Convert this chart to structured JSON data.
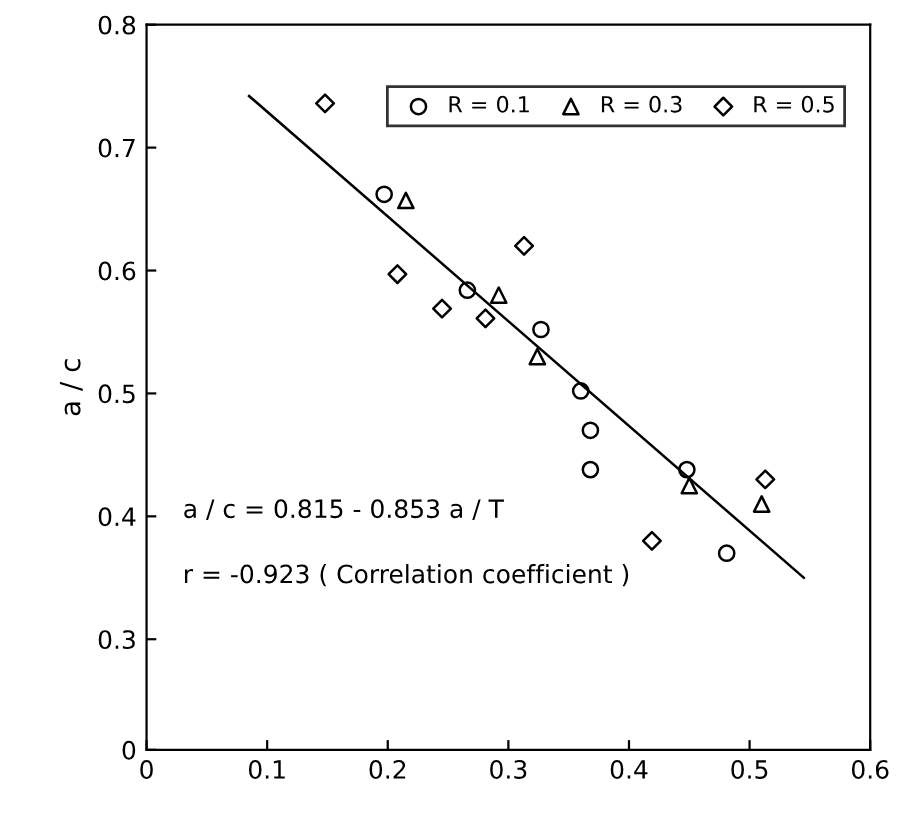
{
  "chart_data": {
    "type": "scatter",
    "ylabel": "a / c",
    "xlim": [
      0,
      0.6
    ],
    "xticks": [
      0,
      0.1,
      0.2,
      0.3,
      0.4,
      0.5,
      0.6
    ],
    "ylim": [
      0.21,
      0.8
    ],
    "yticks": [
      {
        "value": 0.21,
        "label": "0"
      },
      0.3,
      0.4,
      0.5,
      0.6,
      0.7,
      0.8
    ],
    "grid": false,
    "legend": "top right",
    "series": [
      {
        "name": "R = 0.1",
        "color": "#000000",
        "marker": "circle",
        "x": [
          0.197,
          0.266,
          0.327,
          0.36,
          0.368,
          0.368,
          0.448,
          0.481
        ],
        "values": [
          0.662,
          0.584,
          0.552,
          0.502,
          0.47,
          0.438,
          0.438,
          0.37
        ]
      },
      {
        "name": "R = 0.3",
        "color": "#000000",
        "marker": "triangle",
        "x": [
          0.215,
          0.292,
          0.324,
          0.45,
          0.51
        ],
        "values": [
          0.657,
          0.58,
          0.53,
          0.425,
          0.41
        ]
      },
      {
        "name": "R = 0.5",
        "color": "#000000",
        "marker": "diamond",
        "x": [
          0.148,
          0.208,
          0.245,
          0.281,
          0.313,
          0.419,
          0.513
        ],
        "values": [
          0.736,
          0.597,
          0.569,
          0.561,
          0.62,
          0.38,
          0.43
        ]
      },
      {
        "type": "line",
        "color": "#000000",
        "marker": "none",
        "x": [
          0.085,
          0.545
        ],
        "values": [
          0.742,
          0.35
        ]
      }
    ],
    "annotations": [
      "a / c = 0.815 - 0.853 a / T",
      "r = -0.923 ( Correlation coefficient )"
    ]
  }
}
